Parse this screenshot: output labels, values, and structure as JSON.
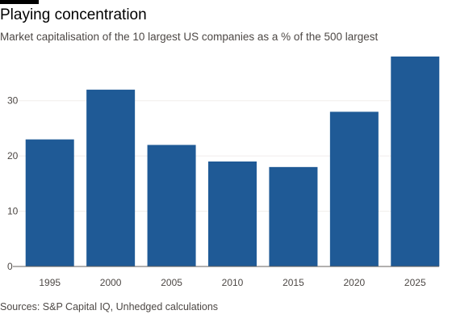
{
  "header": {
    "title": "Playing concentration",
    "subtitle": "Market capitalisation of the 10 largest US companies as a % of the 500 largest"
  },
  "footer": {
    "source": "Sources: S&P Capital IQ, Unhedged calculations"
  },
  "chart_data": {
    "type": "bar",
    "title": "Playing concentration",
    "subtitle": "Market capitalisation of the 10 largest US companies as a % of the 500 largest",
    "xlabel": "",
    "ylabel": "",
    "categories": [
      "1995",
      "2000",
      "2005",
      "2010",
      "2015",
      "2020",
      "2025"
    ],
    "values": [
      23,
      32,
      22,
      19,
      18,
      28,
      38
    ],
    "ylim": [
      0,
      38
    ],
    "yticks": [
      0,
      10,
      20,
      30
    ],
    "grid": true,
    "legend": "none",
    "bar_color": "#1f5a96"
  }
}
